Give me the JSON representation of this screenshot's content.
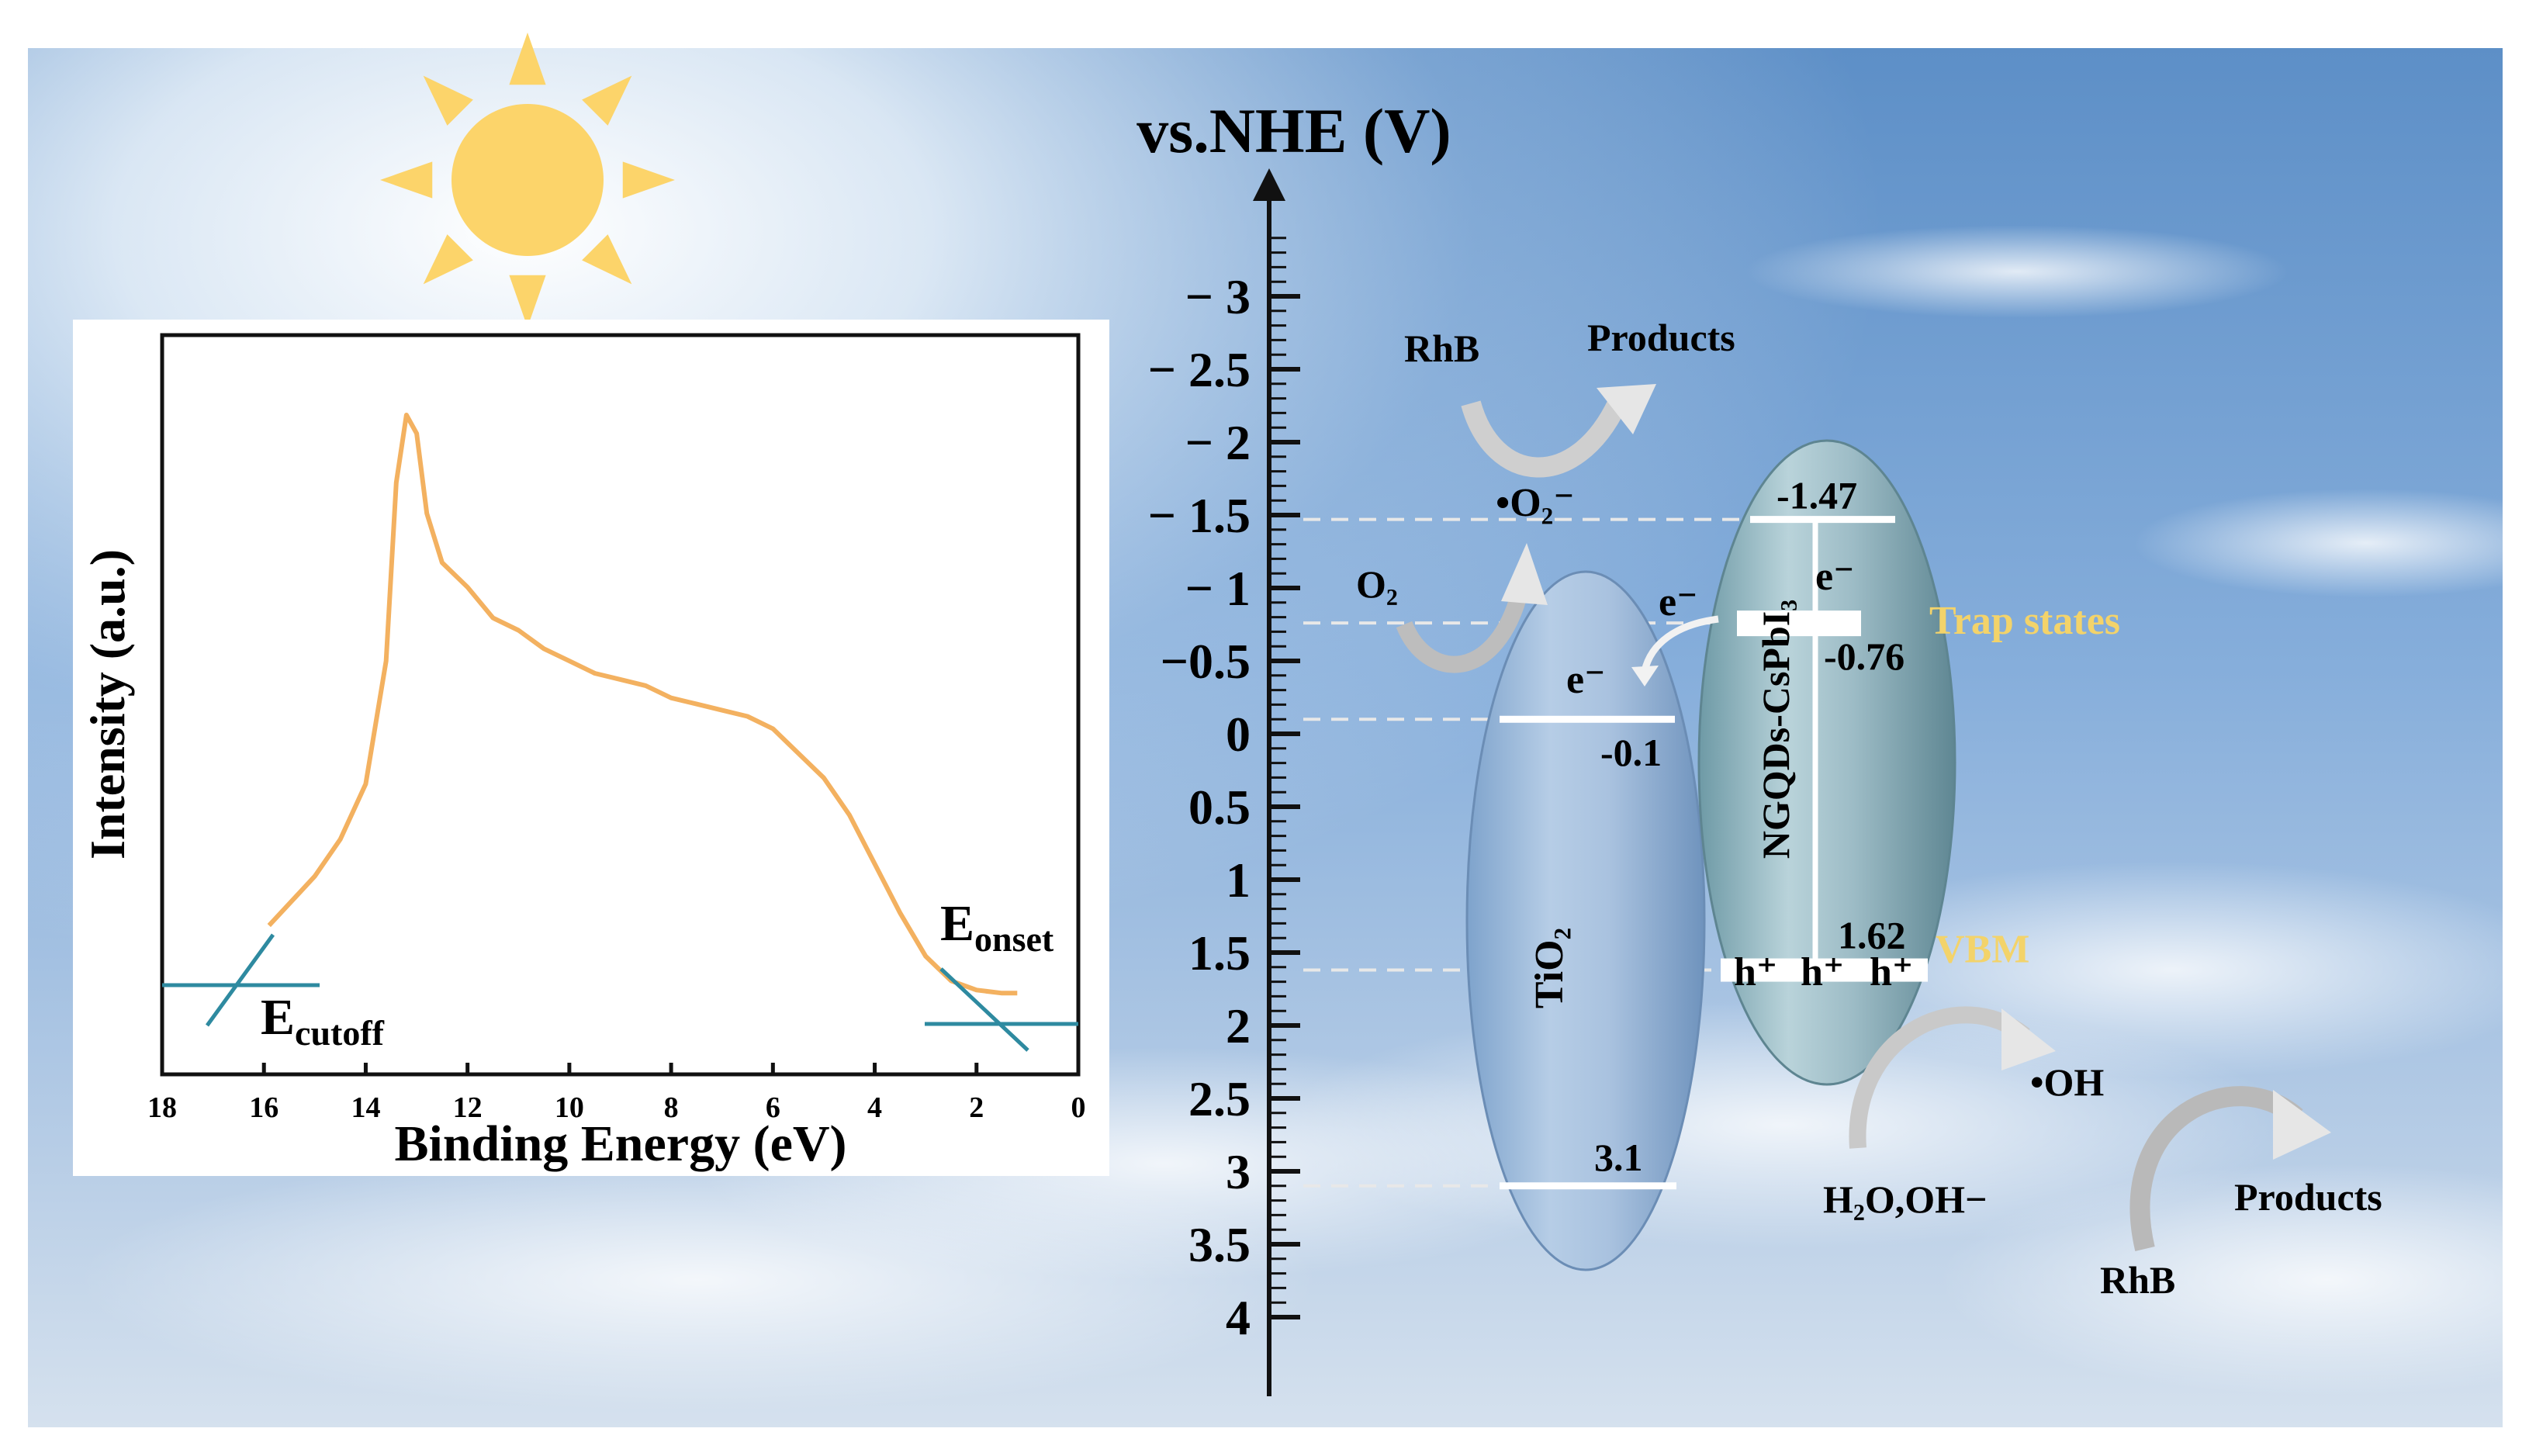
{
  "energy_axis": {
    "title": "vs.NHE (V)",
    "ticks": [
      {
        "value": -3,
        "label": "− 3"
      },
      {
        "value": -2.5,
        "label": "− 2.5"
      },
      {
        "value": -2,
        "label": "− 2"
      },
      {
        "value": -1.5,
        "label": "− 1.5"
      },
      {
        "value": -1,
        "label": "− 1"
      },
      {
        "value": -0.5,
        "label": "−0.5"
      },
      {
        "value": 0,
        "label": "0"
      },
      {
        "value": 0.5,
        "label": "0.5"
      },
      {
        "value": 1,
        "label": "1"
      },
      {
        "value": 1.5,
        "label": "1.5"
      },
      {
        "value": 2,
        "label": "2"
      },
      {
        "value": 2.5,
        "label": "2.5"
      },
      {
        "value": 3,
        "label": "3"
      },
      {
        "value": 3.5,
        "label": "3.5"
      },
      {
        "value": 4,
        "label": "4"
      }
    ],
    "range": [
      -3.6,
      4.4
    ]
  },
  "tio2": {
    "label": "TiO₂",
    "cb": {
      "value": -0.1,
      "label": "-0.1"
    },
    "vb": {
      "value": 3.1,
      "label": "3.1"
    },
    "electron": "e⁻"
  },
  "perovskite": {
    "label": "NGQDs-CsPbI₃",
    "cb": {
      "value": -1.47,
      "label": "-1.47"
    },
    "trap": {
      "value": -0.76,
      "label": "-0.76",
      "name": "Trap states"
    },
    "vb": {
      "value": 1.62,
      "label": "1.62",
      "name": "VBM"
    },
    "electron": "e⁻",
    "holes": [
      "h⁺",
      "h⁺",
      "h⁺"
    ]
  },
  "transfer_electron": "e⁻",
  "reactions": {
    "rhb_top": "RhB",
    "products_top": "Products",
    "superoxide": "•O₂⁻",
    "oxygen": "O₂",
    "hydroxyl": "•OH",
    "water": "H₂O,OH−",
    "rhb_bottom": "RhB",
    "products_bottom": "Products"
  },
  "colors": {
    "highlight": "#f3d36a",
    "curve": "#f3b160",
    "tangent": "#2e8aa0",
    "sun": "#fcd46a",
    "arrow": "#d8d8d8"
  },
  "chart_data": {
    "type": "line",
    "xlabel": "Binding Energy (eV)",
    "ylabel": "Intensity (a.u.)",
    "xlim": [
      18,
      0
    ],
    "xticks": [
      18,
      16,
      14,
      12,
      10,
      8,
      6,
      4,
      2,
      0
    ],
    "series": [
      {
        "x": [
          15.9,
          15.0,
          14.5,
          14.0,
          13.6,
          13.4,
          13.2,
          13.0,
          12.8,
          12.5,
          12.0,
          11.5,
          11.0,
          10.5,
          10.0,
          9.5,
          9.0,
          8.5,
          8.0,
          7.5,
          7.0,
          6.5,
          6.0,
          5.5,
          5.0,
          4.5,
          4.0,
          3.5,
          3.0,
          2.5,
          2.0,
          1.5,
          1.2
        ],
        "y": [
          0.15,
          0.23,
          0.29,
          0.38,
          0.58,
          0.87,
          0.98,
          0.95,
          0.82,
          0.74,
          0.7,
          0.65,
          0.63,
          0.6,
          0.58,
          0.56,
          0.55,
          0.54,
          0.52,
          0.51,
          0.5,
          0.49,
          0.47,
          0.43,
          0.39,
          0.33,
          0.25,
          0.17,
          0.1,
          0.06,
          0.045,
          0.04,
          0.04
        ]
      }
    ],
    "annotations": [
      {
        "text": "E",
        "sub": "cutoff",
        "x": 16.5
      },
      {
        "text": "E",
        "sub": "onset",
        "x": 2.6
      }
    ]
  }
}
